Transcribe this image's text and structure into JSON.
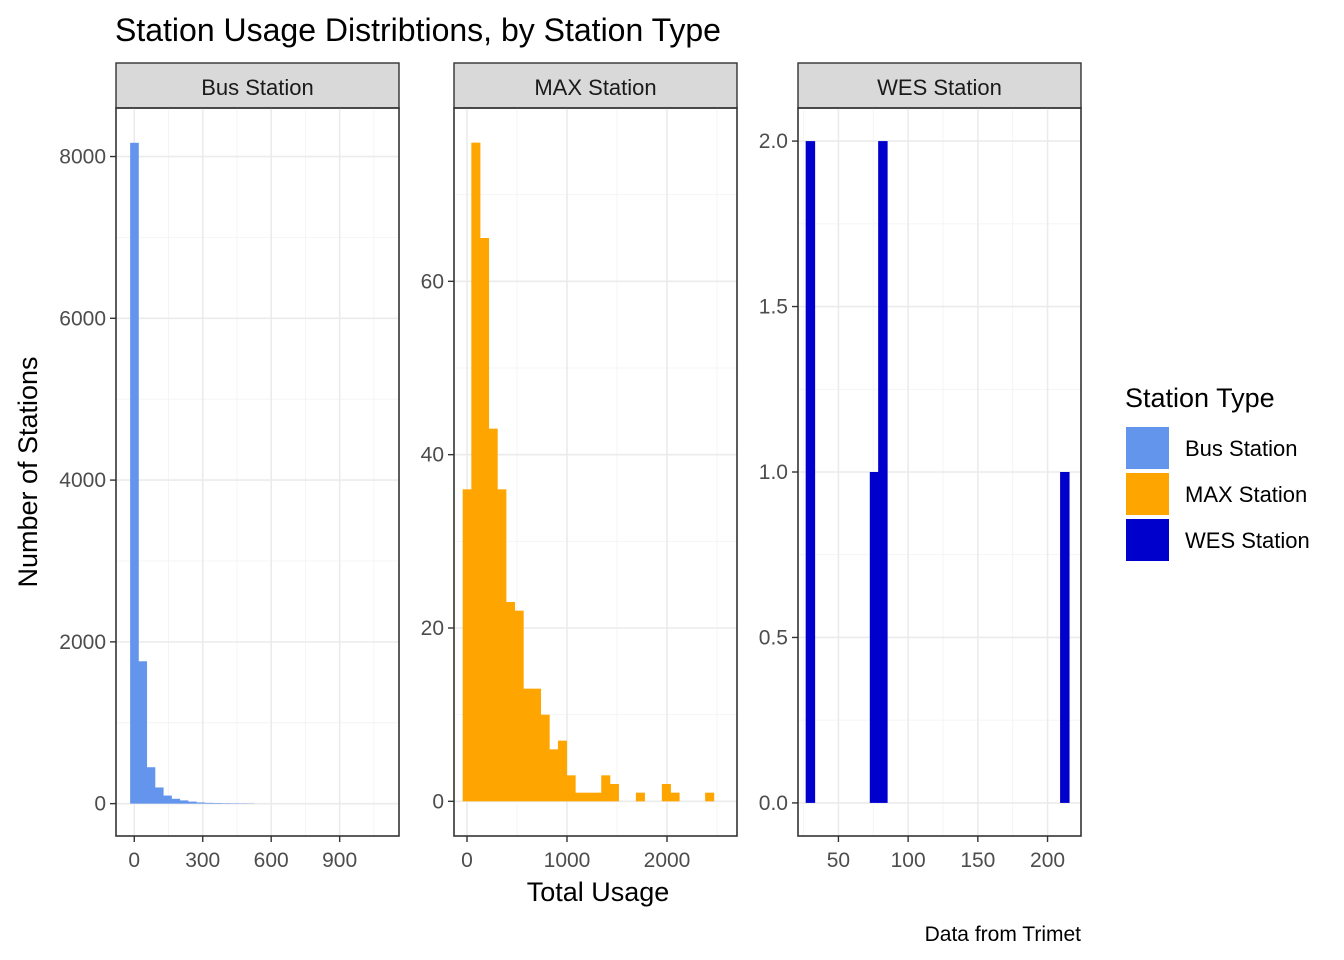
{
  "chart_data": {
    "type": "bar",
    "title": "Station Usage Distribtions, by Station Type",
    "xlabel": "Total Usage",
    "ylabel": "Number of Stations",
    "caption": "Data from Trimet",
    "legend": {
      "title": "Station Type",
      "position": "right",
      "entries": [
        {
          "label": "Bus Station",
          "color": "#6495ED"
        },
        {
          "label": "MAX Station",
          "color": "#FFA500"
        },
        {
          "label": "WES Station",
          "color": "#0000CD"
        }
      ]
    },
    "panels": [
      {
        "name": "Bus Station",
        "color": "#6495ED",
        "xlim": [
          -80,
          1160
        ],
        "ylim": [
          -400,
          8600
        ],
        "x_ticks": [
          0,
          300,
          600,
          900
        ],
        "x_tick_labels": [
          "0",
          "300",
          "600",
          "900"
        ],
        "y_ticks": [
          0,
          2000,
          4000,
          6000,
          8000
        ],
        "y_tick_labels": [
          "0",
          "2000",
          "4000",
          "6000",
          "8000"
        ],
        "bin_width": 36.2,
        "bin_start": -18.1,
        "counts": [
          8170,
          1760,
          450,
          200,
          100,
          60,
          40,
          25,
          15,
          10,
          8,
          6,
          5,
          4,
          3
        ]
      },
      {
        "name": "MAX Station",
        "color": "#FFA500",
        "xlim": [
          -130,
          2700
        ],
        "ylim": [
          -4,
          80
        ],
        "x_ticks": [
          0,
          1000,
          2000
        ],
        "x_tick_labels": [
          "0",
          "1000",
          "2000"
        ],
        "y_ticks": [
          0,
          20,
          40,
          60
        ],
        "y_tick_labels": [
          "0",
          "20",
          "40",
          "60"
        ],
        "bin_width": 86.6,
        "bin_start": -43.3,
        "counts": [
          36,
          76,
          65,
          43,
          36,
          23,
          22,
          13,
          13,
          10,
          6,
          7,
          3,
          1,
          1,
          1,
          3,
          2,
          0,
          0,
          1,
          0,
          0,
          2,
          1,
          0,
          0,
          0,
          1
        ]
      },
      {
        "name": "WES Station",
        "color": "#0000CD",
        "xlim": [
          21,
          224
        ],
        "ylim": [
          -0.1,
          2.1
        ],
        "x_ticks": [
          50,
          100,
          150,
          200
        ],
        "x_tick_labels": [
          "50",
          "100",
          "150",
          "200"
        ],
        "y_ticks": [
          0,
          0.5,
          1,
          1.5,
          2
        ],
        "y_tick_labels": [
          "0.0",
          "0.5",
          "1.0",
          "1.5",
          "2.0"
        ],
        "bins": [
          {
            "x0": 26.5,
            "x1": 33.0,
            "count": 2
          },
          {
            "x0": 72.5,
            "x1": 78.5,
            "count": 1
          },
          {
            "x0": 78.5,
            "x1": 85.0,
            "count": 2
          },
          {
            "x0": 209.0,
            "x1": 215.5,
            "count": 1
          }
        ]
      }
    ]
  }
}
